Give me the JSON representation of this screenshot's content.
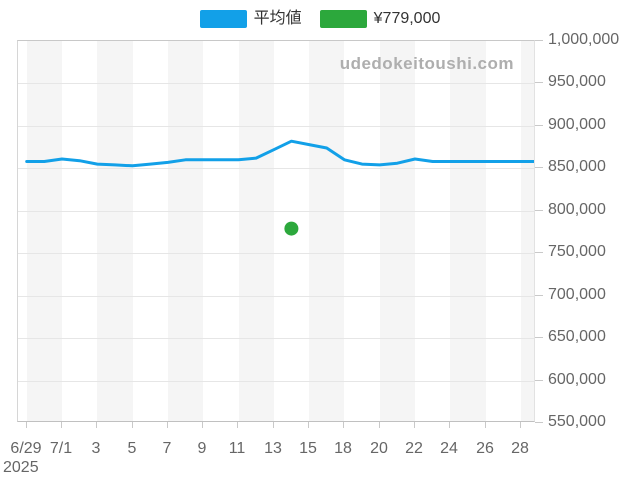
{
  "page": {
    "year_label": "2025"
  },
  "watermark": "udedokeitoushi.com",
  "legend": [
    {
      "label": "平均値",
      "color": "#12a0e8"
    },
    {
      "label": "¥779,000",
      "color": "#2ca83c"
    }
  ],
  "colors": {
    "line_blue": "#12a0e8",
    "point_green": "#2ca83c",
    "band_gray": "#f5f5f5",
    "gridline": "#e6e6e6",
    "axis_text": "#666666",
    "legend_text": "#333333",
    "watermark_text": "#aeaeae"
  },
  "chart_data": {
    "type": "line",
    "title": "",
    "xlabel": "",
    "ylabel": "",
    "grid": true,
    "legend_position": "top-center",
    "ylim": [
      550000,
      1000000
    ],
    "y_tick_step": 50000,
    "y_tick_labels": [
      "1,000,000",
      "950,000",
      "900,000",
      "850,000",
      "800,000",
      "750,000",
      "700,000",
      "650,000",
      "600,000",
      "550,000"
    ],
    "x_tick_labels": [
      "6/29",
      "7/1",
      "3",
      "5",
      "7",
      "9",
      "11",
      "13",
      "15",
      "18",
      "20",
      "22",
      "24",
      "26",
      "28"
    ],
    "x_tick_indices": [
      0,
      2,
      4,
      6,
      8,
      10,
      12,
      14,
      16,
      18,
      20,
      22,
      24,
      26,
      28
    ],
    "n_points": 30,
    "series": [
      {
        "name": "平均値",
        "color": "#12a0e8",
        "values": [
          858000,
          858000,
          861000,
          859000,
          855000,
          854000,
          853000,
          855000,
          857000,
          860000,
          860000,
          860000,
          860000,
          862000,
          872000,
          882000,
          878000,
          874000,
          860000,
          855000,
          854000,
          856000,
          861000,
          858000,
          858000,
          858000,
          858000,
          858000,
          858000,
          858000
        ]
      }
    ],
    "marker_point": {
      "name": "¥779,000",
      "color": "#2ca83c",
      "x_index": 15,
      "value": 779000
    },
    "plot_bands": {
      "style": "alternating-vertical-stripes",
      "band_width_points": 2
    }
  }
}
